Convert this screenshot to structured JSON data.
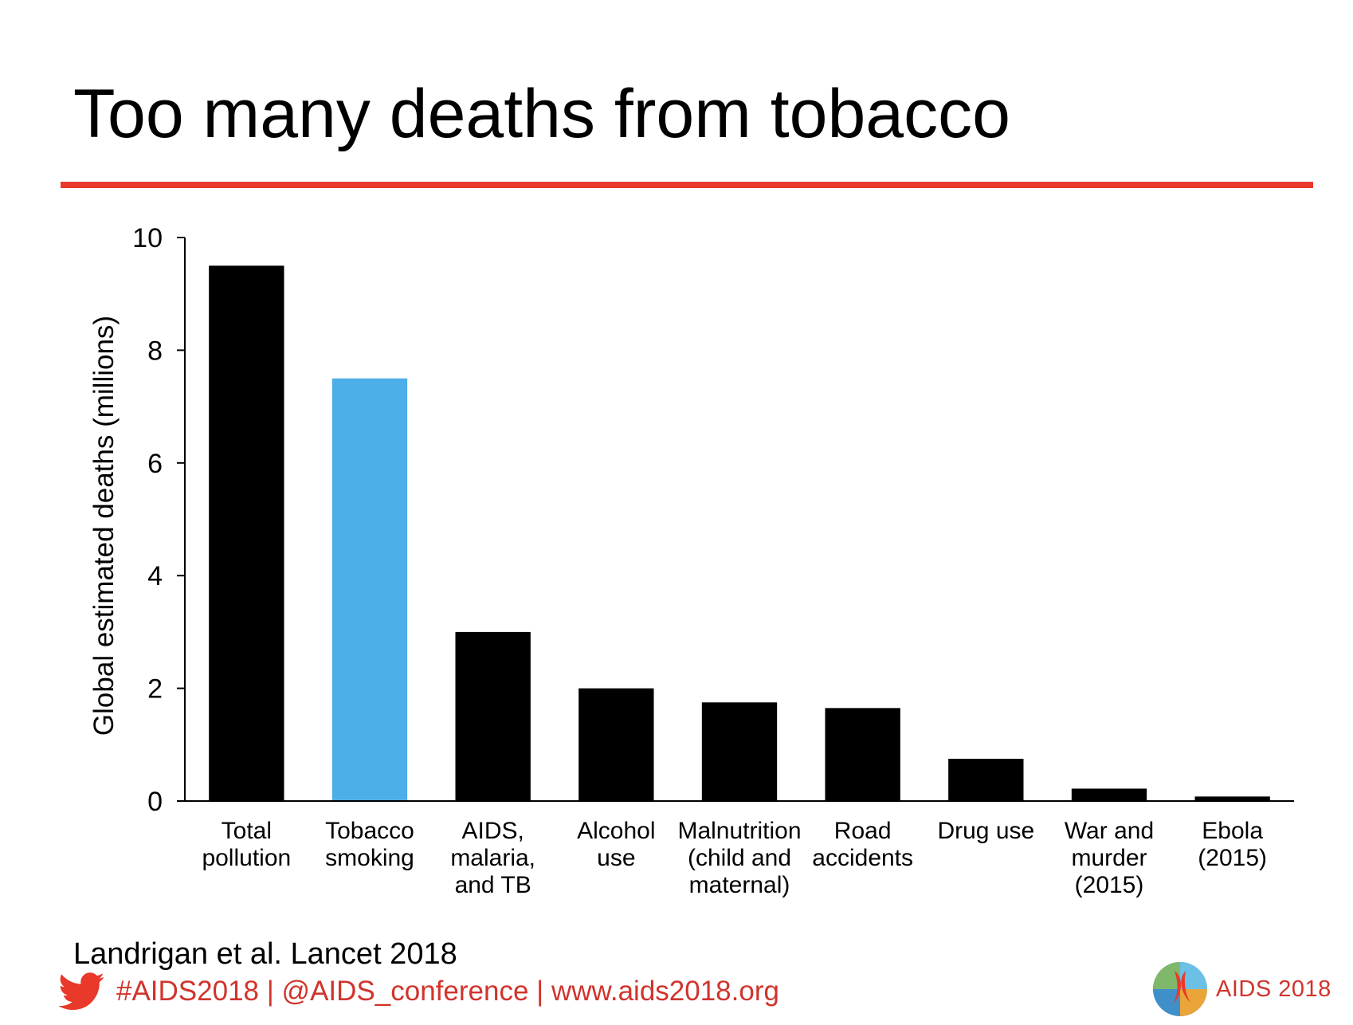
{
  "slide": {
    "title": "Too many deaths from tobacco",
    "citation": "Landrigan et al. Lancet 2018",
    "social_text": "#AIDS2018 | @AIDS_conference | www.aids2018.org",
    "logo_text": "AIDS 2018",
    "accent_color": "#e8392a"
  },
  "chart_data": {
    "type": "bar",
    "title": "",
    "xlabel": "",
    "ylabel": "Global estimated deaths (millions)",
    "ylim": [
      0,
      10
    ],
    "yticks": [
      0,
      2,
      4,
      6,
      8,
      10
    ],
    "categories": [
      [
        "Total",
        "pollution"
      ],
      [
        "Tobacco",
        "smoking"
      ],
      [
        "AIDS,",
        "malaria,",
        "and TB"
      ],
      [
        "Alcohol",
        "use"
      ],
      [
        "Malnutrition",
        "(child and",
        "maternal)"
      ],
      [
        "Road",
        "accidents"
      ],
      [
        "Drug use"
      ],
      [
        "War and",
        "murder",
        "(2015)"
      ],
      [
        "Ebola",
        "(2015)"
      ]
    ],
    "values": [
      9.5,
      7.5,
      3.0,
      2.0,
      1.75,
      1.65,
      0.75,
      0.22,
      0.08
    ],
    "colors": [
      "#000000",
      "#4daee8",
      "#000000",
      "#000000",
      "#000000",
      "#000000",
      "#000000",
      "#000000",
      "#000000"
    ],
    "grid": false,
    "legend": "none"
  }
}
